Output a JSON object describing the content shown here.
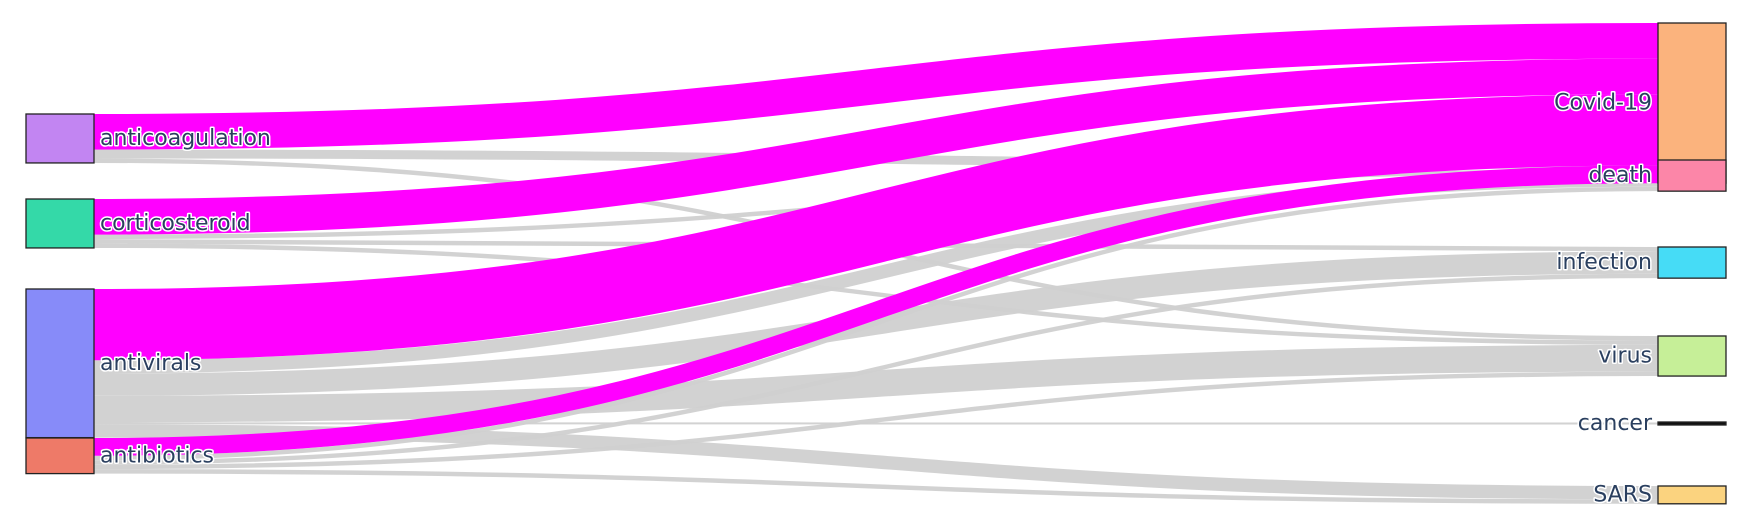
{
  "chart_data": {
    "type": "sankey",
    "title": "",
    "source_nodes": [
      {
        "id": "anticoagulation",
        "label": "anticoagulation",
        "color": "#c285f2"
      },
      {
        "id": "corticosteroid",
        "label": "corticosteroid",
        "color": "#34d9a8"
      },
      {
        "id": "antivirals",
        "label": "antivirals",
        "color": "#878bf9"
      },
      {
        "id": "antibiotics",
        "label": "antibiotics",
        "color": "#ee7a68"
      }
    ],
    "target_nodes": [
      {
        "id": "covid",
        "label": "Covid-19",
        "color": "#fbb37d"
      },
      {
        "id": "death",
        "label": "death",
        "color": "#fc86a8"
      },
      {
        "id": "infection",
        "label": "infection",
        "color": "#46dcf6"
      },
      {
        "id": "virus",
        "label": "virus",
        "color": "#c6ef98"
      },
      {
        "id": "cancer",
        "label": "cancer",
        "color": "#111111"
      },
      {
        "id": "sars",
        "label": "SARS",
        "color": "#fbd37f"
      }
    ],
    "link_colors": {
      "covid": "#ff00ff",
      "other": "#d0d0d0"
    },
    "links": [
      {
        "source": "anticoagulation",
        "target": "covid",
        "value": 2.0
      },
      {
        "source": "anticoagulation",
        "target": "death",
        "value": 0.5
      },
      {
        "source": "anticoagulation",
        "target": "virus",
        "value": 0.25
      },
      {
        "source": "corticosteroid",
        "target": "covid",
        "value": 2.0
      },
      {
        "source": "corticosteroid",
        "target": "death",
        "value": 0.25
      },
      {
        "source": "corticosteroid",
        "target": "infection",
        "value": 0.25
      },
      {
        "source": "corticosteroid",
        "target": "virus",
        "value": 0.25
      },
      {
        "source": "antivirals",
        "target": "covid",
        "value": 4.0
      },
      {
        "source": "antivirals",
        "target": "death",
        "value": 0.75
      },
      {
        "source": "antivirals",
        "target": "infection",
        "value": 1.25
      },
      {
        "source": "antivirals",
        "target": "virus",
        "value": 1.5
      },
      {
        "source": "antivirals",
        "target": "cancer",
        "value": 0.1
      },
      {
        "source": "antivirals",
        "target": "sars",
        "value": 0.75
      },
      {
        "source": "antibiotics",
        "target": "covid",
        "value": 1.0
      },
      {
        "source": "antibiotics",
        "target": "death",
        "value": 0.25
      },
      {
        "source": "antibiotics",
        "target": "infection",
        "value": 0.25
      },
      {
        "source": "antibiotics",
        "target": "virus",
        "value": 0.25
      },
      {
        "source": "antibiotics",
        "target": "sars",
        "value": 0.25
      }
    ]
  }
}
